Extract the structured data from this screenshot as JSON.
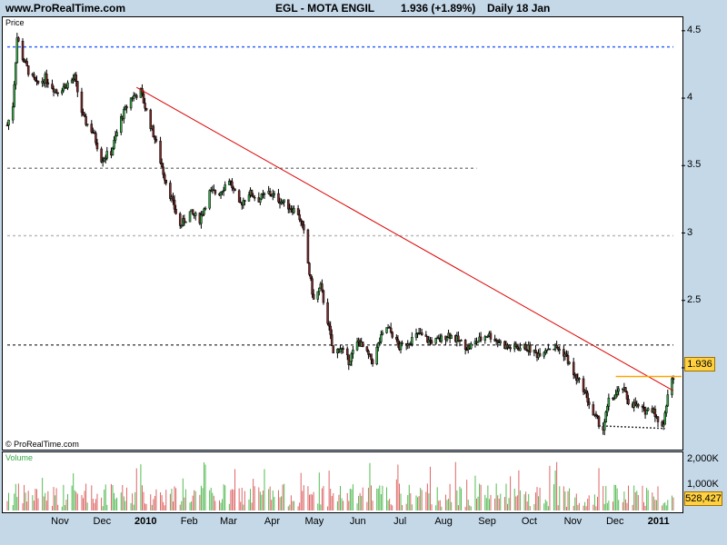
{
  "header": {
    "site": "www.ProRealTime.com",
    "title": "EGL - MOTA ENGIL",
    "price_change": "1.936 (+1.89%)",
    "period": "Daily  18 Jan"
  },
  "price_panel": {
    "label": "Price",
    "watermark": "© ProRealTime.com"
  },
  "volume_panel": {
    "label": "Volume"
  },
  "price_badge": "1.936",
  "volume_badge": "528,427",
  "colors": {
    "bg": "#c4d8e8",
    "up": "#3aa84a",
    "down": "#7a2a2a",
    "trend": "#dd0000",
    "support": "#ffa500",
    "vol_bar": "#dd6666",
    "vol_bar_up": "#55bb55"
  },
  "chart_data": {
    "type": "candlestick",
    "ylim": [
      1.4,
      4.6
    ],
    "yticks": [
      "4.5",
      "4",
      "3.5",
      "3",
      "2.5",
      "2"
    ],
    "ytick_values": [
      4.5,
      4.0,
      3.5,
      3.0,
      2.5,
      2.0
    ],
    "xticks": [
      "Nov",
      "Dec",
      "2010",
      "Feb",
      "Mar",
      "Apr",
      "May",
      "Jun",
      "Jul",
      "Aug",
      "Sep",
      "Oct",
      "Nov",
      "Dec",
      "2011"
    ],
    "xtick_bold": [
      false,
      false,
      true,
      false,
      false,
      false,
      false,
      false,
      false,
      false,
      false,
      false,
      false,
      false,
      true
    ],
    "x_start": "2009-10-01",
    "x_end": "2011-01-18",
    "close_path": [
      [
        "2009-10-01",
        3.8
      ],
      [
        "2009-10-05",
        3.95
      ],
      [
        "2009-10-08",
        4.45
      ],
      [
        "2009-10-12",
        4.3
      ],
      [
        "2009-10-16",
        4.2
      ],
      [
        "2009-10-22",
        4.1
      ],
      [
        "2009-10-28",
        4.15
      ],
      [
        "2009-11-05",
        4.05
      ],
      [
        "2009-11-12",
        4.1
      ],
      [
        "2009-11-18",
        4.15
      ],
      [
        "2009-11-24",
        3.85
      ],
      [
        "2009-12-01",
        3.75
      ],
      [
        "2009-12-07",
        3.55
      ],
      [
        "2009-12-14",
        3.6
      ],
      [
        "2009-12-21",
        3.85
      ],
      [
        "2009-12-28",
        4.0
      ],
      [
        "2010-01-04",
        4.05
      ],
      [
        "2010-01-08",
        3.9
      ],
      [
        "2010-01-14",
        3.7
      ],
      [
        "2010-01-20",
        3.45
      ],
      [
        "2010-01-26",
        3.25
      ],
      [
        "2010-02-01",
        3.05
      ],
      [
        "2010-02-08",
        3.15
      ],
      [
        "2010-02-15",
        3.1
      ],
      [
        "2010-02-22",
        3.3
      ],
      [
        "2010-03-01",
        3.3
      ],
      [
        "2010-03-08",
        3.4
      ],
      [
        "2010-03-15",
        3.2
      ],
      [
        "2010-03-22",
        3.3
      ],
      [
        "2010-03-29",
        3.25
      ],
      [
        "2010-04-05",
        3.3
      ],
      [
        "2010-04-12",
        3.25
      ],
      [
        "2010-04-19",
        3.2
      ],
      [
        "2010-04-26",
        3.15
      ],
      [
        "2010-04-30",
        3.0
      ],
      [
        "2010-05-04",
        2.7
      ],
      [
        "2010-05-07",
        2.5
      ],
      [
        "2010-05-12",
        2.6
      ],
      [
        "2010-05-17",
        2.35
      ],
      [
        "2010-05-21",
        2.1
      ],
      [
        "2010-05-26",
        2.15
      ],
      [
        "2010-06-01",
        2.05
      ],
      [
        "2010-06-08",
        2.2
      ],
      [
        "2010-06-14",
        2.1
      ],
      [
        "2010-06-18",
        2.05
      ],
      [
        "2010-06-23",
        2.2
      ],
      [
        "2010-06-28",
        2.3
      ],
      [
        "2010-07-02",
        2.25
      ],
      [
        "2010-07-07",
        2.15
      ],
      [
        "2010-07-14",
        2.2
      ],
      [
        "2010-07-21",
        2.25
      ],
      [
        "2010-07-28",
        2.2
      ],
      [
        "2010-08-04",
        2.2
      ],
      [
        "2010-08-11",
        2.25
      ],
      [
        "2010-08-18",
        2.2
      ],
      [
        "2010-08-25",
        2.15
      ],
      [
        "2010-09-01",
        2.2
      ],
      [
        "2010-09-08",
        2.25
      ],
      [
        "2010-09-15",
        2.2
      ],
      [
        "2010-09-22",
        2.15
      ],
      [
        "2010-09-29",
        2.15
      ],
      [
        "2010-10-06",
        2.15
      ],
      [
        "2010-10-13",
        2.1
      ],
      [
        "2010-10-20",
        2.15
      ],
      [
        "2010-10-27",
        2.15
      ],
      [
        "2010-11-02",
        2.1
      ],
      [
        "2010-11-08",
        1.95
      ],
      [
        "2010-11-15",
        1.85
      ],
      [
        "2010-11-22",
        1.65
      ],
      [
        "2010-11-29",
        1.55
      ],
      [
        "2010-12-03",
        1.75
      ],
      [
        "2010-12-08",
        1.8
      ],
      [
        "2010-12-13",
        1.85
      ],
      [
        "2010-12-17",
        1.75
      ],
      [
        "2010-12-22",
        1.72
      ],
      [
        "2010-12-28",
        1.68
      ],
      [
        "2011-01-04",
        1.7
      ],
      [
        "2011-01-08",
        1.55
      ],
      [
        "2011-01-11",
        1.6
      ],
      [
        "2011-01-14",
        1.8
      ],
      [
        "2011-01-18",
        1.936
      ]
    ],
    "lines": [
      {
        "name": "resistance-4.38",
        "y": 4.38,
        "style": "dotted",
        "color": "#3366ff",
        "from": "2009-10-01",
        "to": "2011-01-18"
      },
      {
        "name": "resistance-3.48",
        "y": 3.48,
        "style": "dotted",
        "color": "#888888",
        "from": "2009-10-01",
        "to": "2010-08-31"
      },
      {
        "name": "resistance-2.98",
        "y": 2.98,
        "style": "dotted",
        "color": "#bbbbbb",
        "from": "2009-10-01",
        "to": "2011-01-18"
      },
      {
        "name": "support-2.17",
        "y": 2.17,
        "style": "dotted",
        "color": "#555555",
        "from": "2009-10-01",
        "to": "2011-01-18"
      }
    ],
    "trendline": {
      "from": [
        "2010-01-01",
        4.08
      ],
      "to": [
        "2011-01-18",
        1.83
      ]
    },
    "support_low": {
      "from": [
        "2010-11-26",
        1.57
      ],
      "to": [
        "2011-01-12",
        1.55
      ]
    },
    "level_line": {
      "y": 1.936,
      "from": "2010-12-08",
      "to": "2011-01-18"
    },
    "volume": {
      "ylim": [
        0,
        2200
      ],
      "yticks": [
        "2,000K",
        "1,000K"
      ],
      "ytick_values": [
        2000,
        1000
      ],
      "last": 528
    }
  }
}
